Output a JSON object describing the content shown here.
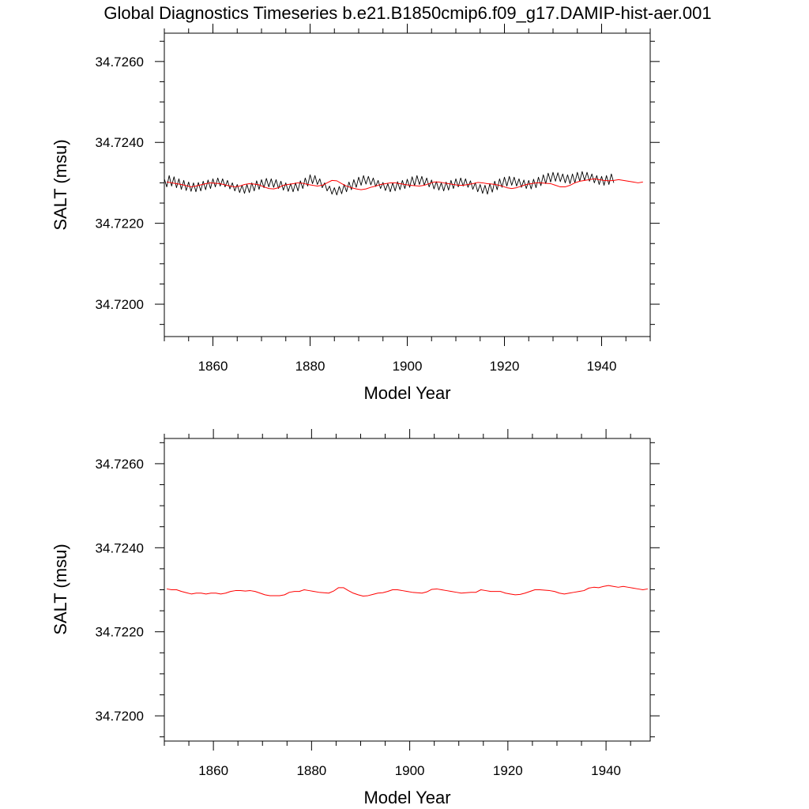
{
  "title": "Global Diagnostics Timeseries b.e21.B1850cmip6.f09_g17.DAMIP-hist-aer.001",
  "colors": {
    "monthly": "#000000",
    "annual": "#ff0000"
  },
  "chart_data": [
    {
      "type": "line",
      "xlabel": "Model Year",
      "ylabel": "SALT (msu)",
      "xlim": [
        1850,
        1950
      ],
      "ylim": [
        34.7192,
        34.7267
      ],
      "x_ticks": [
        1860,
        1880,
        1900,
        1920,
        1940
      ],
      "x_tick_labels": [
        "1860",
        "1880",
        "1900",
        "1920",
        "1940"
      ],
      "y_ticks": [
        34.72,
        34.722,
        34.724,
        34.726
      ],
      "y_tick_labels": [
        "34.7200",
        "34.7220",
        "34.7240",
        "34.7260"
      ],
      "series": [
        {
          "style": "monthly",
          "color": "#000000",
          "x_start": 1850,
          "x_step": 0.5,
          "y": [
            34.7231,
            34.7229,
            34.72318,
            34.72292,
            34.72315,
            34.72288,
            34.7231,
            34.72284,
            34.72306,
            34.72281,
            34.72302,
            34.72279,
            34.723,
            34.72278,
            34.72301,
            34.7228,
            34.72304,
            34.72283,
            34.72307,
            34.72286,
            34.7231,
            34.7229,
            34.72312,
            34.72292,
            34.7231,
            34.7229,
            34.72306,
            34.72285,
            34.723,
            34.7228,
            34.72296,
            34.72276,
            34.72294,
            34.72274,
            34.72296,
            34.72276,
            34.723,
            34.7228,
            34.72305,
            34.72284,
            34.72308,
            34.72288,
            34.72311,
            34.7229,
            34.7231,
            34.72289,
            34.72308,
            34.72286,
            34.72304,
            34.72282,
            34.723,
            34.72279,
            34.72298,
            34.72278,
            34.723,
            34.7228,
            34.72305,
            34.72286,
            34.72312,
            34.72292,
            34.7232,
            34.72298,
            34.72318,
            34.72296,
            34.7231,
            34.72288,
            34.723,
            34.7228,
            34.72292,
            34.72272,
            34.72288,
            34.7227,
            34.72291,
            34.72273,
            34.72296,
            34.72278,
            34.72302,
            34.72283,
            34.72308,
            34.72289,
            34.72314,
            34.72294,
            34.72318,
            34.72297,
            34.72316,
            34.72295,
            34.72312,
            34.72291,
            34.72306,
            34.72286,
            34.72301,
            34.72281,
            34.72298,
            34.72278,
            34.723,
            34.7228,
            34.72303,
            34.72283,
            34.72306,
            34.72286,
            34.72309,
            34.72289,
            34.72315,
            34.72293,
            34.72318,
            34.72296,
            34.72316,
            34.72294,
            34.72312,
            34.7229,
            34.72307,
            34.72285,
            34.72303,
            34.72282,
            34.723,
            34.7228,
            34.72302,
            34.72282,
            34.72306,
            34.72286,
            34.7231,
            34.7229,
            34.72312,
            34.72292,
            34.7231,
            34.72289,
            34.72305,
            34.72284,
            34.723,
            34.72278,
            34.72296,
            34.72274,
            34.72294,
            34.72272,
            34.72298,
            34.72277,
            34.72304,
            34.72283,
            34.7231,
            34.72289,
            34.72314,
            34.72292,
            34.72316,
            34.72294,
            34.72314,
            34.72292,
            34.7231,
            34.72289,
            34.72307,
            34.72286,
            34.72306,
            34.72285,
            34.72309,
            34.72288,
            34.72314,
            34.72293,
            34.7232,
            34.72298,
            34.72324,
            34.72302,
            34.72326,
            34.72304,
            34.72325,
            34.72303,
            34.72322,
            34.723,
            34.7232,
            34.72298,
            34.72322,
            34.723,
            34.72326,
            34.72304,
            34.72328,
            34.72306,
            34.72326,
            34.72304,
            34.72322,
            34.723,
            34.72318,
            34.72296,
            34.72316,
            34.72294,
            34.72318,
            34.72296,
            34.72322,
            34.723
          ]
        },
        {
          "style": "annual",
          "color": "#ff0000",
          "x_start": 1850.5,
          "x_step": 1,
          "y": [
            34.72302,
            34.723,
            34.72298,
            34.72296,
            34.72293,
            34.7229,
            34.72292,
            34.72295,
            34.72298,
            34.723,
            34.72299,
            34.72298,
            34.72295,
            34.72292,
            34.7229,
            34.72292,
            34.72296,
            34.72298,
            34.72297,
            34.72295,
            34.7229,
            34.72286,
            34.72285,
            34.72288,
            34.72294,
            34.72296,
            34.72298,
            34.723,
            34.72299,
            34.72296,
            34.72294,
            34.72292,
            34.72294,
            34.723,
            34.72306,
            34.72305,
            34.72298,
            34.72292,
            34.72288,
            34.72285,
            34.72283,
            34.72285,
            34.72289,
            34.72292,
            34.72296,
            34.72298,
            34.723,
            34.723,
            34.72298,
            34.72296,
            34.72294,
            34.72293,
            34.72292,
            34.72294,
            34.72298,
            34.72302,
            34.72302,
            34.723,
            34.72298,
            34.72296,
            34.72294,
            34.72294,
            34.72296,
            34.72298,
            34.72301,
            34.723,
            34.72298,
            34.72297,
            34.72295,
            34.72292,
            34.72288,
            34.72286,
            34.72288,
            34.72292,
            34.72296,
            34.72298,
            34.723,
            34.723,
            34.72299,
            34.72298,
            34.72294,
            34.7229,
            34.7229,
            34.72294,
            34.723,
            34.72304,
            34.72306,
            34.72308,
            34.7231,
            34.72308,
            34.72306,
            34.72305,
            34.72306,
            34.72308,
            34.72306,
            34.72304,
            34.72302,
            34.723,
            34.72302
          ]
        }
      ]
    },
    {
      "type": "line",
      "xlabel": "Model Year",
      "ylabel": "SALT (msu)",
      "xlim": [
        1850,
        1949
      ],
      "ylim": [
        34.7194,
        34.7266
      ],
      "x_ticks": [
        1860,
        1880,
        1900,
        1920,
        1940
      ],
      "x_tick_labels": [
        "1860",
        "1880",
        "1900",
        "1920",
        "1940"
      ],
      "y_ticks": [
        34.72,
        34.722,
        34.724,
        34.726
      ],
      "y_tick_labels": [
        "34.7200",
        "34.7220",
        "34.7240",
        "34.7260"
      ],
      "series": [
        {
          "style": "annual",
          "color": "#ff0000",
          "x_start": 1850.5,
          "x_step": 1,
          "y": [
            34.72302,
            34.723,
            34.723,
            34.72296,
            34.72293,
            34.7229,
            34.72292,
            34.72292,
            34.7229,
            34.72292,
            34.72292,
            34.7229,
            34.72292,
            34.72296,
            34.72298,
            34.72298,
            34.72297,
            34.72298,
            34.72296,
            34.72292,
            34.72288,
            34.72286,
            34.72286,
            34.72286,
            34.72288,
            34.72294,
            34.72296,
            34.72296,
            34.723,
            34.72298,
            34.72296,
            34.72294,
            34.72293,
            34.72292,
            34.72297,
            34.72305,
            34.72305,
            34.72298,
            34.72292,
            34.72288,
            34.72285,
            34.72286,
            34.72289,
            34.72292,
            34.72293,
            34.72296,
            34.723,
            34.723,
            34.72298,
            34.72296,
            34.72294,
            34.72293,
            34.72292,
            34.72295,
            34.72301,
            34.72302,
            34.723,
            34.72298,
            34.72296,
            34.72294,
            34.72292,
            34.72293,
            34.72294,
            34.72294,
            34.723,
            34.72298,
            34.72296,
            34.72296,
            34.72296,
            34.72292,
            34.7229,
            34.72288,
            34.72289,
            34.72292,
            34.72296,
            34.723,
            34.723,
            34.72299,
            34.72298,
            34.72296,
            34.72292,
            34.7229,
            34.72292,
            34.72294,
            34.72296,
            34.72298,
            34.72304,
            34.72306,
            34.72305,
            34.72308,
            34.7231,
            34.72308,
            34.72306,
            34.72308,
            34.72306,
            34.72304,
            34.72302,
            34.723,
            34.72302
          ]
        }
      ]
    }
  ]
}
